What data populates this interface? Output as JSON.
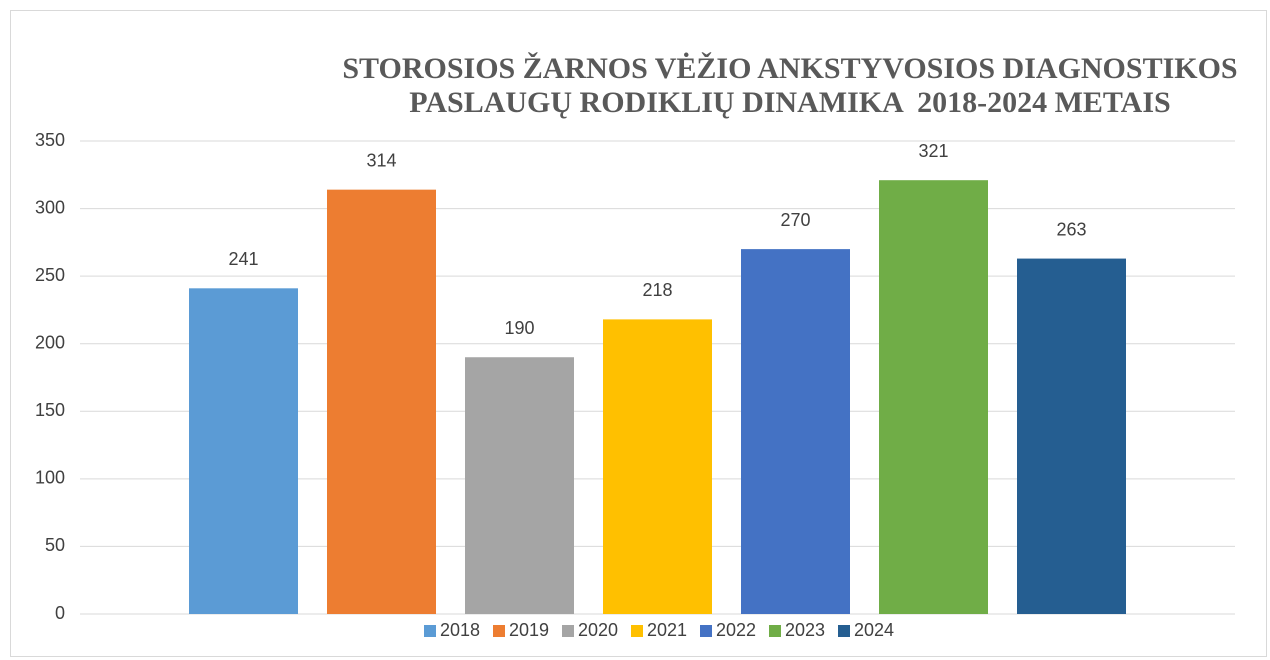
{
  "chart_data": {
    "type": "bar",
    "title": "STOROSIOS ŽARNOS VĖŽIO ANKSTYVOSIOS DIAGNOSTIKOS PASLAUGŲ RODIKLIŲ DINAMIKA  2018-2024 METAIS",
    "categories": [
      null
    ],
    "series": [
      {
        "name": "2018",
        "color": "#5b9bd5",
        "values": [
          241
        ]
      },
      {
        "name": "2019",
        "color": "#ed7d31",
        "values": [
          314
        ]
      },
      {
        "name": "2020",
        "color": "#a5a5a5",
        "values": [
          190
        ]
      },
      {
        "name": "2021",
        "color": "#ffc000",
        "values": [
          218
        ]
      },
      {
        "name": "2022",
        "color": "#4472c4",
        "values": [
          270
        ]
      },
      {
        "name": "2023",
        "color": "#70ad47",
        "values": [
          321
        ]
      },
      {
        "name": "2024",
        "color": "#255e91",
        "values": [
          263
        ]
      }
    ],
    "ylim": [
      0,
      350
    ],
    "yticks": [
      0,
      50,
      100,
      150,
      200,
      250,
      300,
      350
    ],
    "grid": true,
    "legend": "bottom"
  }
}
